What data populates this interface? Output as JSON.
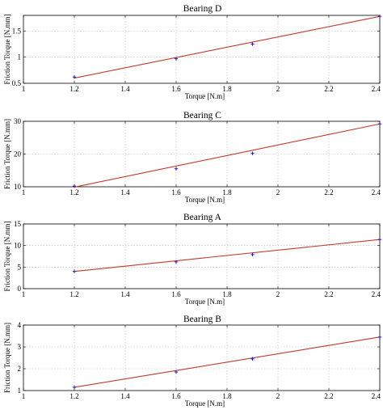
{
  "chart_data": [
    {
      "type": "line",
      "title": "Bearing D",
      "xlabel": "Torque [N.m]",
      "ylabel": "Friction Torque [N.mm]",
      "xlim": [
        1,
        2.4
      ],
      "ylim": [
        0.5,
        1.8
      ],
      "xticks": [
        1,
        1.2,
        1.4,
        1.6,
        1.8,
        2,
        2.2,
        2.4
      ],
      "xtick_labels": [
        "1",
        "1.2",
        "1.4",
        "1.6",
        "1.8",
        "2",
        "2.2",
        "2.4"
      ],
      "yticks": [
        0.5,
        1,
        1.5
      ],
      "ytick_labels": [
        "0.5",
        "1",
        "1.5"
      ],
      "grid": true,
      "fit": {
        "x": [
          1.2,
          2.4
        ],
        "y": [
          0.6,
          1.78
        ],
        "color": "#c0392b"
      },
      "points": {
        "x": [
          1.2,
          1.6,
          1.9,
          2.4
        ],
        "y": [
          0.62,
          0.97,
          1.25,
          1.78
        ],
        "color": "#1f1fbf"
      }
    },
    {
      "type": "line",
      "title": "Bearing C",
      "xlabel": "Torque [N.m]",
      "ylabel": "Friction Torque [N.mm]",
      "xlim": [
        1,
        2.4
      ],
      "ylim": [
        10,
        30
      ],
      "xticks": [
        1,
        1.2,
        1.4,
        1.6,
        1.8,
        2,
        2.2,
        2.4
      ],
      "xtick_labels": [
        "1",
        "1.2",
        "1.4",
        "1.6",
        "1.8",
        "2",
        "2.2",
        "2.4"
      ],
      "yticks": [
        10,
        20,
        30
      ],
      "ytick_labels": [
        "10",
        "20",
        "30"
      ],
      "grid": true,
      "fit": {
        "x": [
          1.2,
          2.4
        ],
        "y": [
          9.9,
          29.2
        ],
        "color": "#c0392b"
      },
      "points": {
        "x": [
          1.2,
          1.6,
          1.9,
          2.4
        ],
        "y": [
          10.2,
          15.5,
          20.2,
          29.2
        ],
        "color": "#1f1fbf"
      }
    },
    {
      "type": "line",
      "title": "Bearing A",
      "xlabel": "Torque [N.m]",
      "ylabel": "Friction Torque [N.mm]",
      "xlim": [
        1,
        2.4
      ],
      "ylim": [
        0,
        15
      ],
      "xticks": [
        1,
        1.2,
        1.4,
        1.6,
        1.8,
        2,
        2.2,
        2.4
      ],
      "xtick_labels": [
        "1",
        "1.2",
        "1.4",
        "1.6",
        "1.8",
        "2",
        "2.2",
        "2.4"
      ],
      "yticks": [
        0,
        5,
        10,
        15
      ],
      "ytick_labels": [
        "0",
        "5",
        "10",
        "15"
      ],
      "grid": true,
      "fit": {
        "x": [
          1.2,
          2.4
        ],
        "y": [
          4.0,
          11.4
        ],
        "color": "#c0392b"
      },
      "points": {
        "x": [
          1.2,
          1.6,
          1.9,
          2.4
        ],
        "y": [
          4.0,
          6.2,
          7.9,
          11.4
        ],
        "color": "#1f1fbf"
      }
    },
    {
      "type": "line",
      "title": "Bearing B",
      "xlabel": "Torque [N.m]",
      "ylabel": "Friction Torque [N.mm]",
      "xlim": [
        1,
        2.4
      ],
      "ylim": [
        1,
        4
      ],
      "xticks": [
        1,
        1.2,
        1.4,
        1.6,
        1.8,
        2,
        2.2,
        2.4
      ],
      "xtick_labels": [
        "1",
        "1.2",
        "1.4",
        "1.6",
        "1.8",
        "2",
        "2.2",
        "2.4"
      ],
      "yticks": [
        1,
        2,
        3,
        4
      ],
      "ytick_labels": [
        "1",
        "2",
        "3",
        "4"
      ],
      "grid": true,
      "fit": {
        "x": [
          1.2,
          2.4
        ],
        "y": [
          1.15,
          3.45
        ],
        "color": "#c0392b"
      },
      "points": {
        "x": [
          1.2,
          1.6,
          1.9,
          2.4
        ],
        "y": [
          1.15,
          1.85,
          2.45,
          3.45
        ],
        "color": "#1f1fbf"
      }
    }
  ]
}
